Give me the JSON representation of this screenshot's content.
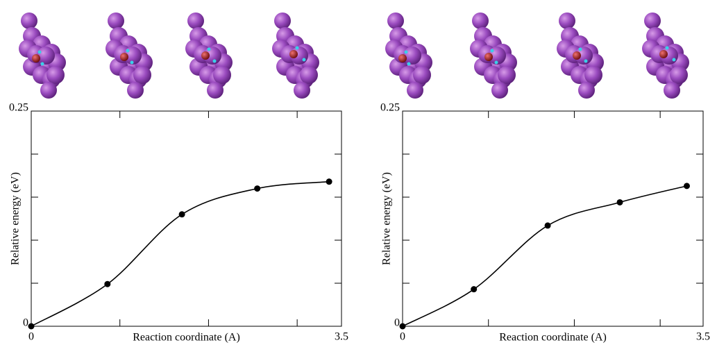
{
  "chart_data": [
    {
      "type": "line",
      "xlabel": "Reaction coordinate (A)",
      "ylabel": "Relative energy (eV)",
      "x": [
        0,
        0.86,
        1.7,
        2.55,
        3.36
      ],
      "values": [
        0,
        0.049,
        0.13,
        0.16,
        0.168
      ],
      "color": "#000000",
      "xlim": [
        0,
        3.5
      ],
      "xticks": [
        0,
        3.5
      ],
      "xminor_ticks": [
        1,
        2,
        3
      ],
      "ylim": [
        0,
        0.25
      ],
      "yticks": [
        0,
        0.25
      ],
      "yminor_ticks": [
        0.05,
        0.1,
        0.15,
        0.2
      ]
    },
    {
      "type": "line",
      "xlabel": "Reaction coordinate (A)",
      "ylabel": "Relative energy (eV)",
      "x": [
        0,
        0.83,
        1.69,
        2.53,
        3.31
      ],
      "values": [
        0,
        0.043,
        0.117,
        0.144,
        0.163
      ],
      "color": "#000000",
      "xlim": [
        0,
        3.5
      ],
      "xticks": [
        0,
        3.5
      ],
      "xminor_ticks": [
        1,
        2,
        3
      ],
      "ylim": [
        0,
        0.25
      ],
      "yticks": [
        0,
        0.25
      ],
      "yminor_ticks": [
        0.05,
        0.1,
        0.15,
        0.2
      ]
    }
  ]
}
